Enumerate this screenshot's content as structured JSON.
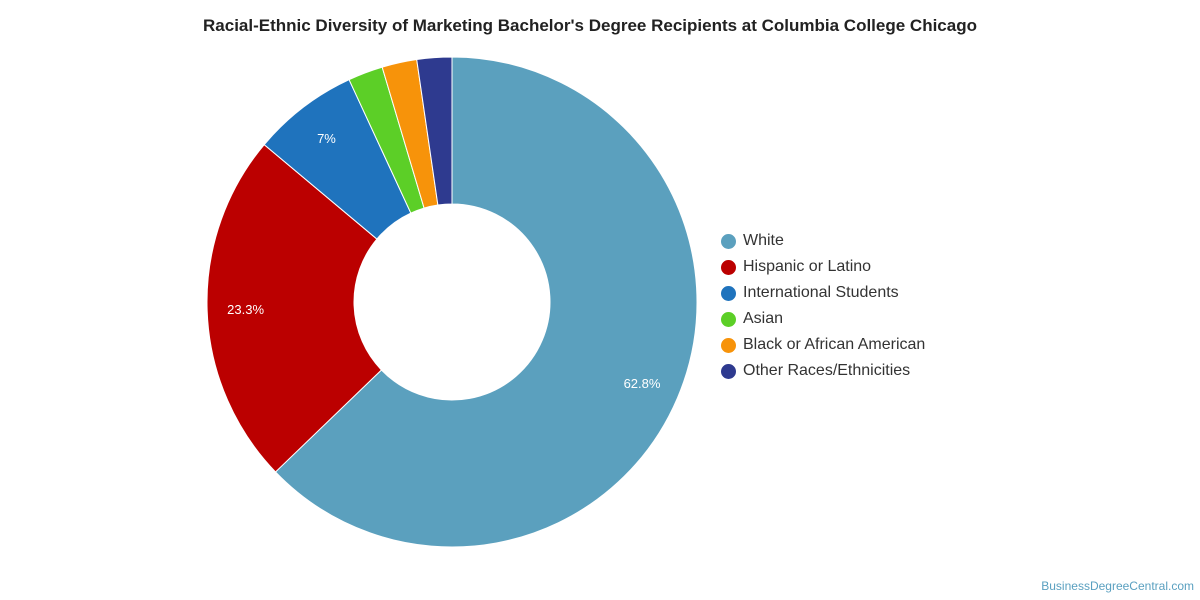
{
  "chart_data": {
    "type": "pie",
    "title": "Racial-Ethnic Diversity of Marketing Bachelor's Degree Recipients at Columbia College Chicago",
    "donut": true,
    "legend_position": "right",
    "slices": [
      {
        "name": "White",
        "value": 62.8,
        "label": "62.8%",
        "color": "#5ba0be"
      },
      {
        "name": "Hispanic or Latino",
        "value": 23.3,
        "label": "23.3%",
        "color": "#bb0000"
      },
      {
        "name": "International Students",
        "value": 7.0,
        "label": "7%",
        "color": "#1f73bd"
      },
      {
        "name": "Asian",
        "value": 2.3,
        "label": "",
        "color": "#5ccf27"
      },
      {
        "name": "Black or African American",
        "value": 2.3,
        "label": "",
        "color": "#f7930a"
      },
      {
        "name": "Other Races/Ethnicities",
        "value": 2.3,
        "label": "",
        "color": "#2e3a8f"
      }
    ]
  },
  "watermark": "BusinessDegreeCentral.com"
}
